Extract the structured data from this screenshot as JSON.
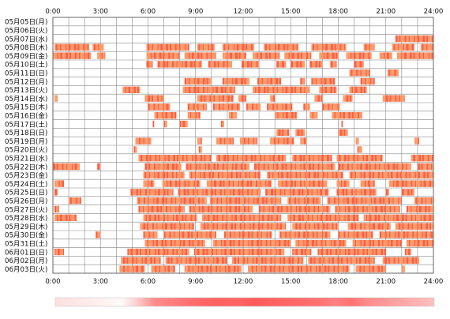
{
  "chart_data": {
    "type": "heatmap",
    "x_unit": "hour",
    "xlim": [
      0,
      24
    ],
    "x_ticks": [
      "0:00",
      "3:00",
      "6:00",
      "9:00",
      "12:00",
      "15:00",
      "18:00",
      "21:00",
      "24:00"
    ],
    "grid": true,
    "colors": {
      "activity_light": "#ff9966",
      "activity_dark": "#ff5e44",
      "grid": "#888888",
      "frame": "#666666",
      "density_base": "#ffe8e8",
      "density_peak": "#ff3a3a"
    },
    "rows": [
      {
        "label": "05月05日(月)",
        "spans": []
      },
      {
        "label": "05月06日(火)",
        "spans": []
      },
      {
        "label": "05月07日(水)",
        "spans": [
          [
            21.6,
            24.0
          ]
        ]
      },
      {
        "label": "05月08日(木)",
        "spans": [
          [
            0.1,
            2.3
          ],
          [
            2.5,
            3.2
          ],
          [
            5.9,
            8.6
          ],
          [
            9.1,
            10.2
          ],
          [
            10.7,
            12.7
          ],
          [
            13.3,
            15.5
          ],
          [
            16.3,
            18.5
          ],
          [
            19.6,
            20.3
          ],
          [
            21.4,
            22.8
          ],
          [
            23.2,
            24.0
          ]
        ]
      },
      {
        "label": "05月09日(金)",
        "spans": [
          [
            0.0,
            2.4
          ],
          [
            2.8,
            3.3
          ],
          [
            5.9,
            8.0
          ],
          [
            8.3,
            10.3
          ],
          [
            10.7,
            12.2
          ],
          [
            12.6,
            14.3
          ],
          [
            14.6,
            16.3
          ],
          [
            16.8,
            18.0
          ],
          [
            18.5,
            20.1
          ],
          [
            20.6,
            21.4
          ],
          [
            21.7,
            24.0
          ]
        ]
      },
      {
        "label": "05月10日(土)",
        "spans": [
          [
            5.9,
            6.3
          ],
          [
            6.6,
            9.4
          ],
          [
            9.8,
            11.3
          ],
          [
            11.9,
            13.0
          ],
          [
            14.1,
            14.7
          ],
          [
            15.0,
            15.9
          ],
          [
            16.2,
            17.0
          ],
          [
            17.5,
            17.9
          ],
          [
            19.0,
            19.6
          ]
        ]
      },
      {
        "label": "05月11日(日)",
        "spans": [
          [
            18.7,
            20.0
          ],
          [
            21.1,
            21.8
          ]
        ]
      },
      {
        "label": "05月12日(月)",
        "spans": [
          [
            8.3,
            10.0
          ],
          [
            10.7,
            12.4
          ],
          [
            12.9,
            14.4
          ],
          [
            15.6,
            15.9
          ],
          [
            16.3,
            17.8
          ],
          [
            19.4,
            20.3
          ]
        ]
      },
      {
        "label": "05月13日(火)",
        "spans": [
          [
            4.4,
            5.5
          ],
          [
            8.2,
            11.5
          ],
          [
            12.6,
            16.2
          ],
          [
            16.8,
            17.9
          ],
          [
            18.7,
            19.8
          ]
        ]
      },
      {
        "label": "05月14日(水)",
        "spans": [
          [
            0.1,
            0.3
          ],
          [
            5.8,
            7.0
          ],
          [
            9.1,
            11.4
          ],
          [
            11.7,
            12.2
          ],
          [
            13.7,
            14.0
          ],
          [
            16.5,
            17.0
          ],
          [
            18.3,
            18.9
          ],
          [
            20.8,
            22.2
          ]
        ]
      },
      {
        "label": "05月15日(木)",
        "spans": [
          [
            6.0,
            7.4
          ],
          [
            8.5,
            9.7
          ],
          [
            10.1,
            11.8
          ],
          [
            12.2,
            13.1
          ],
          [
            13.5,
            15.1
          ],
          [
            15.8,
            16.2
          ],
          [
            17.0,
            18.1
          ]
        ]
      },
      {
        "label": "05月16日(金)",
        "spans": [
          [
            6.4,
            7.8
          ],
          [
            8.5,
            9.3
          ],
          [
            11.1,
            11.6
          ],
          [
            14.0,
            15.4
          ],
          [
            16.2,
            16.7
          ],
          [
            17.6,
            19.5
          ]
        ]
      },
      {
        "label": "05月17日(土)",
        "spans": [
          [
            6.3,
            6.4
          ],
          [
            7.0,
            7.2
          ],
          [
            8.0,
            8.5
          ],
          [
            10.6,
            10.8
          ],
          [
            18.2,
            18.3
          ]
        ]
      },
      {
        "label": "05月18日(日)",
        "spans": [
          [
            14.1,
            14.9
          ],
          [
            15.3,
            15.9
          ],
          [
            18.0,
            18.6
          ]
        ]
      },
      {
        "label": "05月19日(月)",
        "spans": [
          [
            5.2,
            6.2
          ],
          [
            9.1,
            9.4
          ],
          [
            10.3,
            11.4
          ],
          [
            11.8,
            12.9
          ],
          [
            13.7,
            15.2
          ],
          [
            15.6,
            16.0
          ],
          [
            19.1,
            19.3
          ],
          [
            22.8,
            23.1
          ]
        ]
      },
      {
        "label": "05月20日(火)",
        "spans": [
          [
            5.1,
            5.3
          ],
          [
            9.2,
            9.4
          ],
          [
            19.2,
            19.5
          ]
        ]
      },
      {
        "label": "05月21日(水)",
        "spans": [
          [
            5.4,
            10.0
          ],
          [
            10.3,
            14.7
          ],
          [
            15.1,
            17.6
          ],
          [
            17.9,
            20.8
          ],
          [
            22.6,
            24.0
          ]
        ]
      },
      {
        "label": "05月22日(木)",
        "spans": [
          [
            0.0,
            1.7
          ],
          [
            2.8,
            3.0
          ],
          [
            5.8,
            8.1
          ],
          [
            8.4,
            12.4
          ],
          [
            12.7,
            17.8
          ],
          [
            18.0,
            22.6
          ],
          [
            23.0,
            24.0
          ]
        ]
      },
      {
        "label": "05月23日(金)",
        "spans": [
          [
            5.7,
            8.3
          ],
          [
            8.6,
            13.1
          ],
          [
            13.5,
            18.3
          ],
          [
            18.7,
            24.0
          ]
        ]
      },
      {
        "label": "05月24日(土)",
        "spans": [
          [
            0.1,
            0.7
          ],
          [
            5.7,
            6.4
          ],
          [
            6.9,
            9.3
          ],
          [
            9.7,
            13.8
          ],
          [
            14.2,
            17.3
          ],
          [
            17.9,
            18.7
          ],
          [
            19.4,
            20.3
          ],
          [
            21.2,
            24.0
          ]
        ]
      },
      {
        "label": "05月25日(日)",
        "spans": [
          [
            0.1,
            0.3
          ],
          [
            4.9,
            7.6
          ],
          [
            7.9,
            13.1
          ],
          [
            13.4,
            17.4
          ],
          [
            17.9,
            20.4
          ],
          [
            21.0,
            21.2
          ],
          [
            22.0,
            22.8
          ]
        ]
      },
      {
        "label": "05月26日(月)",
        "spans": [
          [
            1.0,
            1.8
          ],
          [
            5.3,
            9.7
          ],
          [
            9.9,
            14.4
          ],
          [
            14.8,
            16.9
          ],
          [
            17.3,
            22.0
          ],
          [
            22.8,
            24.0
          ]
        ]
      },
      {
        "label": "05月27日(火)",
        "spans": [
          [
            0.1,
            0.4
          ],
          [
            5.4,
            8.3
          ],
          [
            8.6,
            12.6
          ],
          [
            13.0,
            17.5
          ],
          [
            17.8,
            21.9
          ],
          [
            22.3,
            24.0
          ]
        ]
      },
      {
        "label": "05月28日(水)",
        "spans": [
          [
            0.1,
            1.5
          ],
          [
            5.7,
            9.1
          ],
          [
            9.4,
            14.4
          ],
          [
            14.8,
            19.3
          ],
          [
            19.6,
            24.0
          ]
        ]
      },
      {
        "label": "05月29日(木)",
        "spans": [
          [
            5.5,
            8.9
          ],
          [
            9.3,
            14.7
          ],
          [
            15.1,
            18.0
          ],
          [
            18.6,
            21.3
          ],
          [
            21.6,
            24.0
          ]
        ]
      },
      {
        "label": "05月30日(金)",
        "spans": [
          [
            2.7,
            3.0
          ],
          [
            5.7,
            6.6
          ],
          [
            7.0,
            10.3
          ],
          [
            10.8,
            13.8
          ],
          [
            14.3,
            17.5
          ],
          [
            18.0,
            20.2
          ],
          [
            20.6,
            24.0
          ]
        ]
      },
      {
        "label": "05月31日(土)",
        "spans": [
          [
            5.8,
            9.6
          ],
          [
            10.1,
            15.0
          ],
          [
            15.3,
            18.5
          ],
          [
            18.9,
            22.0
          ],
          [
            22.3,
            24.0
          ]
        ]
      },
      {
        "label": "06月01日(日)",
        "spans": [
          [
            0.1,
            0.7
          ],
          [
            4.7,
            8.6
          ],
          [
            8.9,
            14.6
          ],
          [
            15.1,
            16.3
          ],
          [
            16.7,
            21.0
          ],
          [
            22.2,
            22.6
          ]
        ]
      },
      {
        "label": "06月02日(月)",
        "spans": [
          [
            4.3,
            6.8
          ],
          [
            7.1,
            11.0
          ],
          [
            11.3,
            15.8
          ],
          [
            16.1,
            20.3
          ],
          [
            20.8,
            23.1
          ]
        ]
      },
      {
        "label": "06月03日(火)",
        "spans": [
          [
            4.2,
            5.8
          ],
          [
            6.2,
            7.7
          ],
          [
            8.3,
            11.9
          ],
          [
            12.3,
            18.7
          ],
          [
            19.1,
            21.0
          ],
          [
            22.0,
            22.2
          ]
        ]
      }
    ],
    "density": [
      0.12,
      0.1,
      0.08,
      0.05,
      0.02,
      0.2,
      0.45,
      0.5,
      0.55,
      0.6,
      0.62,
      0.6,
      0.65,
      0.62,
      0.6,
      0.58,
      0.55,
      0.5,
      0.55,
      0.45,
      0.4,
      0.35,
      0.3,
      0.25
    ]
  }
}
